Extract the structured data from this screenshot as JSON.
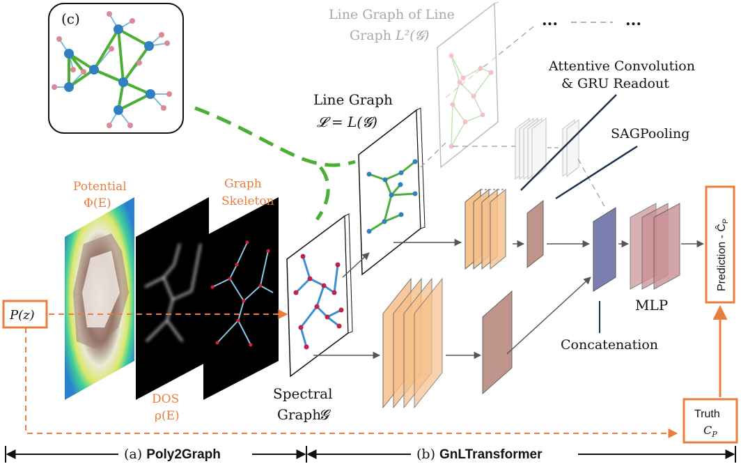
{
  "labels": {
    "panel_c": "(c)",
    "l2_title_1": "Line Graph of Line",
    "l2_title_2": "Graph",
    "l2_symbol": "L²(𝓖)",
    "line_graph_title": "Line Graph",
    "line_graph_symbol": "𝓛 = L(𝓖)",
    "attentive_1": "Attentive Convolution",
    "attentive_2": "& GRU Readout",
    "sagpooling": "SAGPooling",
    "potential_1": "Potential",
    "potential_2": "Φ(E)",
    "graph_skeleton_1": "Graph",
    "graph_skeleton_2": "Skeleton",
    "dos_1": "DOS",
    "dos_2": "ρ(E)",
    "spectral_1": "Spectral",
    "spectral_2": "Graph",
    "spectral_symbol": "𝓖",
    "pz": "P(z)",
    "prediction": "Prediction - Ĉ",
    "prediction_sub": "P",
    "truth_1": "Truth",
    "truth_2": "C",
    "truth_sub": "P",
    "mlp": "MLP",
    "concatenation": "Concatenation",
    "ellipsis_1": "...",
    "ellipsis_2": "...",
    "section_a_prefix": "(a) ",
    "section_a": "Poly2Graph",
    "section_b_prefix": "(b) ",
    "section_b": "GnLTransformer"
  },
  "colors": {
    "orange_accent": "#e87d3e",
    "green_edge": "#4caf35",
    "node_blue": "#2f7fc1",
    "node_red": "#c0234a",
    "node_pink": "#d98a95",
    "edge_lightblue": "#7fb8d8",
    "layer_orange": "#f6c08a",
    "layer_brown": "#b9897e",
    "layer_purple": "#7b7fb0",
    "layer_mauve": "#c98f93",
    "gray_text": "#a8a8a8"
  }
}
